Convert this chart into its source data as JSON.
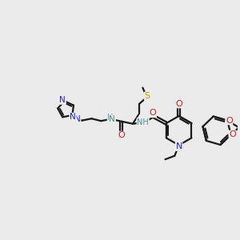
{
  "bg_color": "#ebebeb",
  "bond_color": "#1a1a1a",
  "bond_width": 1.6,
  "atom_colors": {
    "N": "#2222cc",
    "O": "#cc2222",
    "S": "#bbaa00",
    "NH": "#4a9090",
    "C": "#1a1a1a"
  },
  "figsize": [
    3.0,
    3.0
  ],
  "dpi": 100
}
